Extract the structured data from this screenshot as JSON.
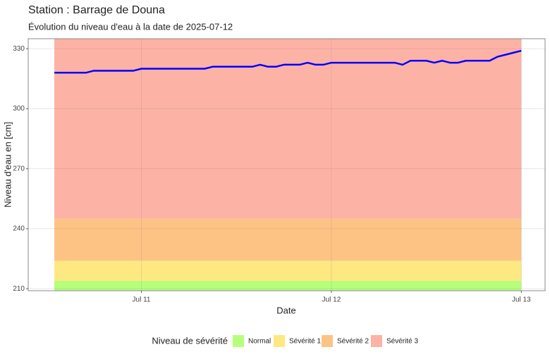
{
  "chart_data": {
    "type": "line",
    "title": "Station : Barrage de Douna",
    "subtitle": "Évolution du niveau d'eau à la date de 2025-07-12",
    "xlabel": "Date",
    "ylabel": "Niveau d'eau en [cm]",
    "x": [
      -11,
      -10,
      -9,
      -8,
      -7,
      -6,
      -5,
      -4,
      -3,
      -2,
      -1,
      0,
      1,
      2,
      3,
      4,
      5,
      6,
      7,
      8,
      9,
      10,
      11,
      12,
      13,
      14,
      15,
      16,
      17,
      18,
      19,
      20,
      21,
      22,
      23,
      24,
      25,
      26,
      27,
      28,
      29,
      30,
      31,
      32,
      33,
      34,
      35,
      36,
      37,
      38,
      39,
      40,
      41,
      42,
      43,
      44,
      45,
      46,
      47,
      48
    ],
    "series": [
      {
        "name": "Niveau d'eau",
        "color": "#0000ff",
        "values": [
          318,
          318,
          318,
          318,
          318,
          319,
          319,
          319,
          319,
          319,
          319,
          320,
          320,
          320,
          320,
          320,
          320,
          320,
          320,
          320,
          321,
          321,
          321,
          321,
          321,
          321,
          322,
          321,
          321,
          322,
          322,
          322,
          323,
          322,
          322,
          323,
          323,
          323,
          323,
          323,
          323,
          323,
          323,
          323,
          322,
          324,
          324,
          324,
          323,
          324,
          323,
          323,
          324,
          324,
          324,
          324,
          326,
          327,
          328,
          329
        ]
      }
    ],
    "bands": [
      {
        "name": "Normal",
        "color": "#b5ff7a",
        "upper": 214
      },
      {
        "name": "Sévérité 1",
        "color": "#fde882",
        "upper": 224
      },
      {
        "name": "Sévérité 2",
        "color": "#fdc385",
        "upper": 245
      },
      {
        "name": "Sévérité 3",
        "color": "#fdb2a6",
        "upper": 335
      }
    ],
    "legend_title": "Niveau de sévérité",
    "legend_position": "bottom",
    "xlim": [
      -14.3,
      51
    ],
    "xticks": [
      {
        "value": 0,
        "label": "Jul 11"
      },
      {
        "value": 24,
        "label": "Jul 12"
      },
      {
        "value": 48,
        "label": "Jul 13"
      }
    ],
    "ylim": [
      209,
      335
    ],
    "yticks": [
      210,
      240,
      270,
      300,
      330
    ],
    "grid": true
  }
}
